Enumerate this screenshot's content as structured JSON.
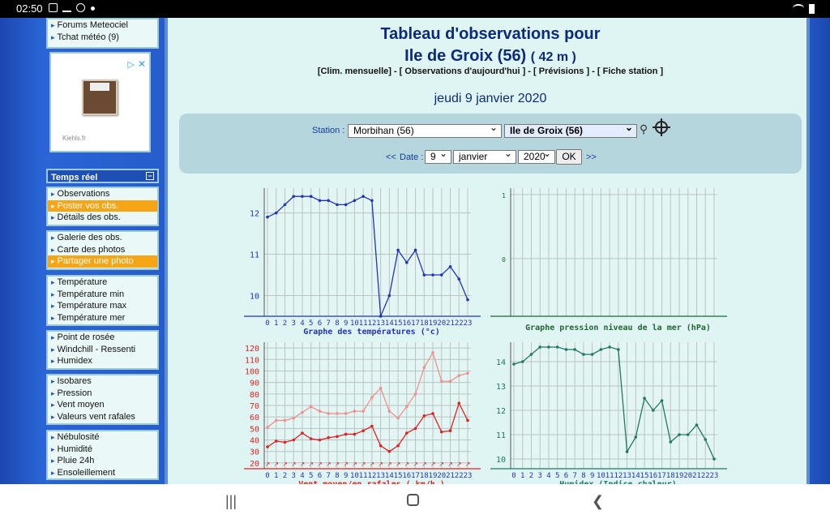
{
  "status": {
    "time": "02:50"
  },
  "sidebar": {
    "groups": [
      {
        "items": [
          {
            "label": "Forums Meteociel",
            "hl": false
          },
          {
            "label": "Tchat météo (9)",
            "hl": false
          }
        ]
      },
      {
        "items": [
          {
            "label": "Observations",
            "hl": false
          },
          {
            "label": "Poster vos obs.",
            "hl": true
          },
          {
            "label": "Détails des obs.",
            "hl": false
          }
        ]
      },
      {
        "items": [
          {
            "label": "Galerie des obs.",
            "hl": false
          },
          {
            "label": "Carte des photos",
            "hl": false
          },
          {
            "label": "Partager une photo",
            "hl": true
          }
        ]
      },
      {
        "items": [
          {
            "label": "Température",
            "hl": false
          },
          {
            "label": "Température min",
            "hl": false
          },
          {
            "label": "Température max",
            "hl": false
          },
          {
            "label": "Température mer",
            "hl": false
          }
        ]
      },
      {
        "items": [
          {
            "label": "Point de rosée",
            "hl": false
          },
          {
            "label": "Windchill - Ressenti",
            "hl": false
          },
          {
            "label": "Humidex",
            "hl": false
          }
        ]
      },
      {
        "items": [
          {
            "label": "Isobares",
            "hl": false
          },
          {
            "label": "Pression",
            "hl": false
          },
          {
            "label": "Vent moyen",
            "hl": false
          },
          {
            "label": "Valeurs vent rafales",
            "hl": false
          }
        ]
      },
      {
        "items": [
          {
            "label": "Nébulosité",
            "hl": false
          },
          {
            "label": "Humidité",
            "hl": false
          },
          {
            "label": "Pluie 24h",
            "hl": false
          },
          {
            "label": "Ensoleillement",
            "hl": false
          }
        ]
      }
    ],
    "section_title": "Temps réel",
    "ad": {
      "source": "Kiehls.fr"
    }
  },
  "main": {
    "title_line1": "Tableau d'observations pour",
    "title_station": "Ile de Groix (56)",
    "title_alt": "( 42 m )",
    "links": "[Clim. mensuelle] - [ Observations d'aujourd'hui ] - [ Prévisions ] - [ Fiche station ]",
    "date": "jeudi 9 janvier 2020",
    "form": {
      "station_label": "Station :",
      "dept": "Morbihan (56)",
      "station": "Ile de Groix (56)",
      "prev": "<<",
      "date_label": "Date :",
      "day": "9",
      "month": "janvier",
      "year": "2020",
      "ok": "OK",
      "next": ">>"
    }
  },
  "icons": {
    "search": "magnifier-icon",
    "target": "crosshair-icon"
  },
  "colors": {
    "temp": "#2233bb",
    "wind": "#dd2222",
    "gust": "#f09090",
    "pressure": "#226633",
    "humidex": "#227766"
  },
  "chart_data": [
    {
      "type": "line",
      "title": "Graphe des températures (°c)",
      "x": [
        0,
        1,
        2,
        3,
        4,
        5,
        6,
        7,
        8,
        9,
        10,
        11,
        12,
        13,
        14,
        15,
        16,
        17,
        18,
        19,
        20,
        21,
        22,
        23
      ],
      "xlabels": [
        "0",
        "1",
        "2",
        "3",
        "4",
        "5",
        "6",
        "7",
        "8",
        "9",
        "10",
        "11",
        "12",
        "13",
        "14",
        "15",
        "16",
        "17",
        "18",
        "19",
        "20",
        "21",
        "22",
        "23"
      ],
      "yticks": [
        10,
        11,
        12
      ],
      "ylim": [
        9.5,
        12.6
      ],
      "series": [
        {
          "values": [
            11.9,
            12.0,
            12.2,
            12.4,
            12.4,
            12.4,
            12.3,
            12.3,
            12.2,
            12.2,
            12.3,
            12.4,
            12.3,
            9.5,
            10.0,
            11.1,
            10.8,
            11.1,
            10.5,
            10.5,
            10.5,
            10.7,
            10.4,
            9.9
          ]
        }
      ]
    },
    {
      "type": "line",
      "title": "Graphe pression niveau de la mer (hPa)",
      "x": [],
      "yticks": [
        0,
        1
      ],
      "ylim": [
        -0.9,
        1.1
      ],
      "series": []
    },
    {
      "type": "line",
      "title": "Vent moyen/en rafales ( km/h )",
      "x": [
        0,
        1,
        2,
        3,
        4,
        5,
        6,
        7,
        8,
        9,
        10,
        11,
        12,
        13,
        14,
        15,
        16,
        17,
        18,
        19,
        20,
        21,
        22,
        23
      ],
      "xlabels": [
        "0",
        "1",
        "2",
        "3",
        "4",
        "5",
        "6",
        "7",
        "8",
        "9",
        "10",
        "11",
        "12",
        "13",
        "14",
        "15",
        "16",
        "17",
        "18",
        "19",
        "20",
        "21",
        "22",
        "23"
      ],
      "yticks": [
        20,
        30,
        40,
        50,
        60,
        70,
        80,
        90,
        100,
        110,
        120
      ],
      "ylim": [
        15,
        125
      ],
      "series": [
        {
          "name": "Vent moyen",
          "values": [
            34,
            39,
            38,
            40,
            46,
            41,
            40,
            42,
            43,
            45,
            45,
            48,
            52,
            35,
            30,
            35,
            46,
            50,
            61,
            63,
            47,
            48,
            72,
            57
          ]
        },
        {
          "name": "rafales",
          "values": [
            51,
            57,
            57,
            59,
            64,
            69,
            65,
            63,
            63,
            63,
            65,
            65,
            77,
            85,
            65,
            59,
            69,
            80,
            103,
            116,
            91,
            91,
            96,
            98
          ]
        }
      ]
    },
    {
      "type": "line",
      "title": "Humidex (Indice chaleur)",
      "x": [
        0,
        1,
        2,
        3,
        4,
        5,
        6,
        7,
        8,
        9,
        10,
        11,
        12,
        13,
        14,
        15,
        16,
        17,
        18,
        19,
        20,
        21,
        22,
        23
      ],
      "xlabels": [
        "0",
        "1",
        "2",
        "3",
        "4",
        "5",
        "6",
        "7",
        "8",
        "9",
        "10",
        "11",
        "12",
        "13",
        "14",
        "15",
        "16",
        "17",
        "18",
        "19",
        "20",
        "21",
        "22",
        "23"
      ],
      "yticks": [
        10,
        11,
        12,
        13,
        14
      ],
      "ylim": [
        9.6,
        14.8
      ],
      "series": [
        {
          "values": [
            13.9,
            14.0,
            14.3,
            14.6,
            14.6,
            14.6,
            14.5,
            14.5,
            14.3,
            14.3,
            14.5,
            14.6,
            14.5,
            10.3,
            10.9,
            12.5,
            12.0,
            12.4,
            10.7,
            11.0,
            11.0,
            11.4,
            10.8,
            10.0
          ]
        }
      ]
    }
  ]
}
